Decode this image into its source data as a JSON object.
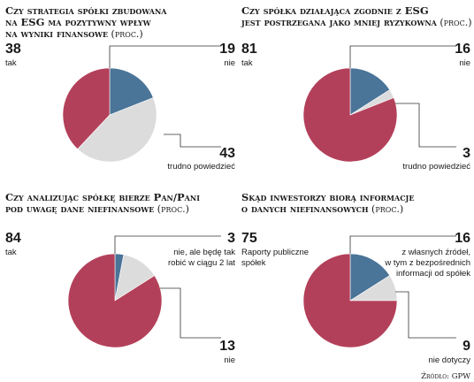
{
  "colors": {
    "tak": "#b3405a",
    "nie": "#4a7498",
    "other": "#dcdcdc",
    "text": "#1a1a1a"
  },
  "chart_data": [
    {
      "type": "pie",
      "title_lines": [
        "Czy strategia spółki zbudowana",
        "na ESG ma pozytywny wpływ",
        "na wyniki finansowe"
      ],
      "title_suffix": "(proc.)",
      "slices": [
        {
          "key": "tak",
          "value": 38,
          "value_label": "38",
          "label_lines": [
            "tak"
          ]
        },
        {
          "key": "nie",
          "value": 19,
          "value_label": "19",
          "label_lines": [
            "nie"
          ]
        },
        {
          "key": "other",
          "value": 43,
          "value_label": "43",
          "label_lines": [
            "trudno powiedzieć"
          ]
        }
      ]
    },
    {
      "type": "pie",
      "title_lines": [
        "Czy spółka działająca zgodnie z ESG",
        "jest postrzegana jako mniej ryzykowna"
      ],
      "title_suffix": "(proc.)",
      "slices": [
        {
          "key": "tak",
          "value": 81,
          "value_label": "81",
          "label_lines": [
            "tak"
          ]
        },
        {
          "key": "nie",
          "value": 16,
          "value_label": "16",
          "label_lines": [
            "nie"
          ]
        },
        {
          "key": "other",
          "value": 3,
          "value_label": "3",
          "label_lines": [
            "trudno powiedzieć"
          ]
        }
      ]
    },
    {
      "type": "pie",
      "title_lines": [
        "Czy analizując spółkę bierze Pan/Pani",
        "pod uwagę dane niefinansowe"
      ],
      "title_suffix": "(proc.)",
      "slices": [
        {
          "key": "tak",
          "value": 84,
          "value_label": "84",
          "label_lines": [
            "tak"
          ]
        },
        {
          "key": "nie",
          "value": 3,
          "value_label": "3",
          "label_lines": [
            "nie, ale będę tak",
            "robić w ciągu 2 lat"
          ]
        },
        {
          "key": "other",
          "value": 13,
          "value_label": "13",
          "label_lines": [
            "nie"
          ]
        }
      ]
    },
    {
      "type": "pie",
      "title_lines": [
        "Skąd inwestorzy biorą informacje",
        "o danych  niefinansowych"
      ],
      "title_suffix": "(proc.)",
      "slices": [
        {
          "key": "tak",
          "value": 75,
          "value_label": "75",
          "label_lines": [
            "Raporty publiczne",
            "spółek"
          ]
        },
        {
          "key": "nie",
          "value": 16,
          "value_label": "16",
          "label_lines": [
            "z własnych źródeł,",
            "w tym z bezpośrednich",
            "informacji od spółek"
          ]
        },
        {
          "key": "other",
          "value": 9,
          "value_label": "9",
          "label_lines": [
            "nie dotyczy"
          ]
        }
      ]
    }
  ],
  "source": "Źródło: GPW"
}
